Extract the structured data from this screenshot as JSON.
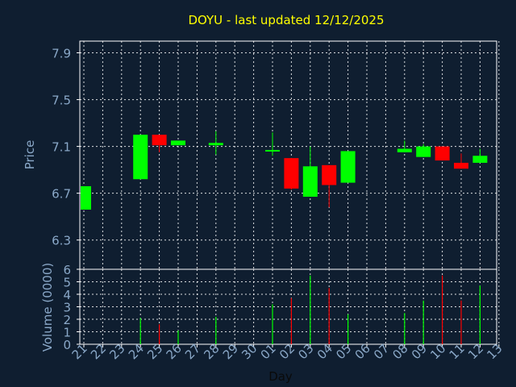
{
  "chart_data": [
    {
      "type": "candlestick",
      "title": "DOYU - last updated 12/12/2025",
      "ylabel": "Price",
      "ylim": [
        6.05,
        8.0
      ],
      "yticks": [
        "6.3",
        "6.7",
        "7.1",
        "7.5",
        "7.9"
      ],
      "ytick_values": [
        6.3,
        6.7,
        7.1,
        7.5,
        7.9
      ],
      "grid": true,
      "colors": {
        "up": "#00ff00",
        "down": "#ff0000",
        "grid": "#ffffff",
        "axis": "#ffffff",
        "background": "#0f1e30",
        "text": "#8aa8c8",
        "title": "#ffff00"
      },
      "categories": [
        "21",
        "22",
        "23",
        "24",
        "25",
        "26",
        "27",
        "28",
        "29",
        "30",
        "01",
        "02",
        "03",
        "04",
        "05",
        "06",
        "07",
        "08",
        "09",
        "10",
        "11",
        "12",
        "13"
      ],
      "candles": [
        {
          "day": "21",
          "open": 6.56,
          "high": 6.76,
          "low": 6.56,
          "close": 6.76
        },
        {
          "day": "24",
          "open": 6.82,
          "high": 7.2,
          "low": 6.82,
          "close": 7.2
        },
        {
          "day": "25",
          "open": 7.2,
          "high": 7.2,
          "low": 7.05,
          "close": 7.11
        },
        {
          "day": "26",
          "open": 7.11,
          "high": 7.15,
          "low": 7.11,
          "close": 7.15
        },
        {
          "day": "28",
          "open": 7.11,
          "high": 7.23,
          "low": 7.03,
          "close": 7.13
        },
        {
          "day": "01",
          "open": 7.06,
          "high": 7.22,
          "low": 7.02,
          "close": 7.07
        },
        {
          "day": "02",
          "open": 7.0,
          "high": 7.0,
          "low": 6.73,
          "close": 6.74
        },
        {
          "day": "03",
          "open": 6.67,
          "high": 7.1,
          "low": 6.67,
          "close": 6.93
        },
        {
          "day": "04",
          "open": 6.94,
          "high": 6.94,
          "low": 6.58,
          "close": 6.77
        },
        {
          "day": "05",
          "open": 6.79,
          "high": 7.06,
          "low": 6.79,
          "close": 7.06
        },
        {
          "day": "08",
          "open": 7.05,
          "high": 7.15,
          "low": 7.05,
          "close": 7.08
        },
        {
          "day": "09",
          "open": 7.01,
          "high": 7.12,
          "low": 7.01,
          "close": 7.1
        },
        {
          "day": "10",
          "open": 7.1,
          "high": 7.1,
          "low": 6.98,
          "close": 6.98
        },
        {
          "day": "11",
          "open": 6.96,
          "high": 7.04,
          "low": 6.91,
          "close": 6.91
        },
        {
          "day": "12",
          "open": 6.96,
          "high": 7.08,
          "low": 6.96,
          "close": 7.02
        }
      ]
    },
    {
      "type": "bar",
      "ylabel": "Volume (0000)",
      "xlabel": "Day",
      "ylim": [
        0,
        6
      ],
      "yticks": [
        "0",
        "1",
        "2",
        "3",
        "4",
        "5",
        "6"
      ],
      "ytick_values": [
        0,
        1,
        2,
        3,
        4,
        5,
        6
      ],
      "grid": true,
      "categories": [
        "21",
        "22",
        "23",
        "24",
        "25",
        "26",
        "27",
        "28",
        "29",
        "30",
        "01",
        "02",
        "03",
        "04",
        "05",
        "06",
        "07",
        "08",
        "09",
        "10",
        "11",
        "12",
        "13"
      ],
      "bars": [
        {
          "day": "21",
          "value": 0.0,
          "direction": "up"
        },
        {
          "day": "24",
          "value": 2.1,
          "direction": "up"
        },
        {
          "day": "25",
          "value": 1.6,
          "direction": "down"
        },
        {
          "day": "26",
          "value": 1.1,
          "direction": "up"
        },
        {
          "day": "28",
          "value": 2.2,
          "direction": "up"
        },
        {
          "day": "01",
          "value": 3.2,
          "direction": "up"
        },
        {
          "day": "02",
          "value": 3.7,
          "direction": "down"
        },
        {
          "day": "03",
          "value": 5.5,
          "direction": "up"
        },
        {
          "day": "04",
          "value": 4.5,
          "direction": "down"
        },
        {
          "day": "05",
          "value": 2.4,
          "direction": "up"
        },
        {
          "day": "08",
          "value": 2.5,
          "direction": "up"
        },
        {
          "day": "09",
          "value": 3.5,
          "direction": "up"
        },
        {
          "day": "10",
          "value": 5.5,
          "direction": "down"
        },
        {
          "day": "11",
          "value": 3.5,
          "direction": "down"
        },
        {
          "day": "12",
          "value": 4.7,
          "direction": "up"
        }
      ]
    }
  ]
}
